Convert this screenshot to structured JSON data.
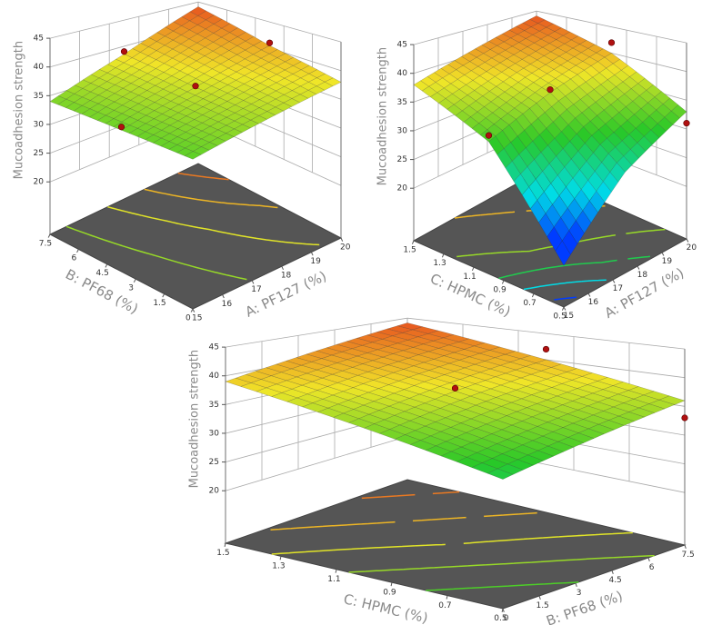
{
  "chart_data": [
    {
      "type": "surface3d",
      "xlabel": "A: PF127 (%)",
      "ylabel": "B: PF68 (%)",
      "zlabel": "Mucoadhesion strength",
      "xlim": [
        15,
        20
      ],
      "xticks": [
        15,
        16,
        17,
        18,
        19,
        20
      ],
      "ylim": [
        0,
        7.5
      ],
      "yticks": [
        0,
        1.5,
        3,
        4.5,
        6,
        7.5
      ],
      "zlim": [
        20,
        45
      ],
      "zticks": [
        20,
        25,
        30,
        35,
        40,
        45
      ],
      "surface": {
        "x": [
          15,
          17.5,
          20
        ],
        "y": [
          0,
          3.75,
          7.5
        ],
        "z": [
          [
            33,
            35.5,
            38
          ],
          [
            33.5,
            36.8,
            40.5
          ],
          [
            34,
            38.5,
            44
          ]
        ]
      },
      "contour_levels": [
        35,
        37.5,
        40,
        42.5
      ],
      "points": {
        "x": [
          20,
          17.5,
          17.5,
          15
        ],
        "y": [
          3.75,
          7.5,
          3.75,
          3.75
        ],
        "z": [
          41,
          39,
          37,
          34
        ]
      },
      "point_color": "#b01010",
      "floor_color": "#555555",
      "grid": true
    },
    {
      "type": "surface3d",
      "xlabel": "A: PF127 (%)",
      "ylabel": "C: HPMC (%)",
      "zlabel": "Mucoadhesion strength",
      "xlim": [
        15,
        20
      ],
      "xticks": [
        15,
        16,
        17,
        18,
        19,
        20
      ],
      "ylim": [
        0.5,
        1.5
      ],
      "yticks": [
        0.5,
        0.7,
        0.9,
        1.1,
        1.3,
        1.5
      ],
      "zlim": [
        20,
        45
      ],
      "zticks": [
        20,
        25,
        30,
        35,
        40,
        45
      ],
      "surface": {
        "x": [
          15,
          17.5,
          20
        ],
        "y": [
          0.5,
          1,
          1.5
        ],
        "z": [
          [
            17,
            27,
            33
          ],
          [
            32,
            36.5,
            40
          ],
          [
            38,
            41,
            44
          ]
        ]
      },
      "contour_levels": [
        20,
        25,
        30,
        35,
        40
      ],
      "points": {
        "x": [
          20,
          15,
          17.5,
          20
        ],
        "y": [
          1,
          1,
          1,
          0.5
        ],
        "z": [
          42,
          33,
          37,
          31
        ]
      },
      "point_color": "#b01010",
      "floor_color": "#555555",
      "grid": true
    },
    {
      "type": "surface3d",
      "xlabel": "B: PF68 (%)",
      "ylabel": "C: HPMC (%)",
      "zlabel": "Mucoadhesion strength",
      "xlim": [
        0,
        7.5
      ],
      "xticks": [
        0,
        1.5,
        3,
        4.5,
        6,
        7.5
      ],
      "ylim": [
        0.5,
        1.5
      ],
      "yticks": [
        0.5,
        0.7,
        0.9,
        1.1,
        1.3,
        1.5
      ],
      "zlim": [
        20,
        45
      ],
      "zticks": [
        20,
        25,
        30,
        35,
        40,
        45
      ],
      "surface": {
        "x": [
          0,
          3.75,
          7.5
        ],
        "y": [
          0.5,
          1,
          1.5
        ],
        "z": [
          [
            30,
            33,
            36
          ],
          [
            34.5,
            37.5,
            40
          ],
          [
            39,
            41.5,
            44
          ]
        ]
      },
      "contour_levels": [
        32.5,
        35,
        37.5,
        40,
        42.5
      ],
      "points": {
        "x": [
          7.5,
          3.75,
          7.5
        ],
        "y": [
          1,
          1,
          0.5
        ],
        "z": [
          42,
          38,
          33
        ]
      },
      "point_color": "#b01010",
      "floor_color": "#555555",
      "grid": true
    }
  ]
}
